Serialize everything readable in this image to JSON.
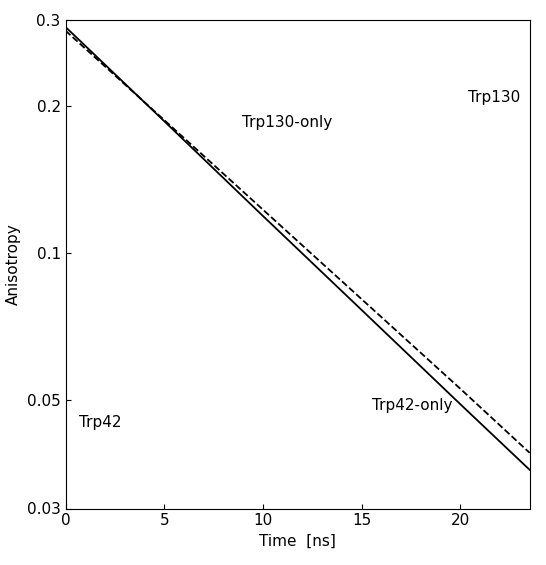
{
  "chart_data": {
    "type": "line",
    "x_label": "Time  [ns]",
    "y_label": "Anisotropy",
    "log": "y",
    "xlim": [
      0,
      23.5
    ],
    "xticks": [
      0,
      5,
      10,
      15,
      20
    ],
    "ylim": [
      0.03,
      0.3
    ],
    "yticks": [
      0.03,
      0.05,
      0.1,
      0.2,
      0.3
    ],
    "grid": false,
    "x": [
      0,
      5,
      10,
      15,
      20,
      23.5
    ],
    "series": [
      {
        "name": "Trp130-only",
        "color": "#000000",
        "line_style": "dashed",
        "values": [
          0.285,
          0.187,
          0.1226,
          0.0804,
          0.0527,
          0.039
        ]
      },
      {
        "name": "Trp42-only",
        "color": "#000000",
        "line_style": "solid",
        "values": [
          0.29,
          0.186,
          0.119,
          0.0764,
          0.049,
          0.036
        ]
      }
    ],
    "annotations": [
      "Trp130",
      "Trp42"
    ]
  }
}
